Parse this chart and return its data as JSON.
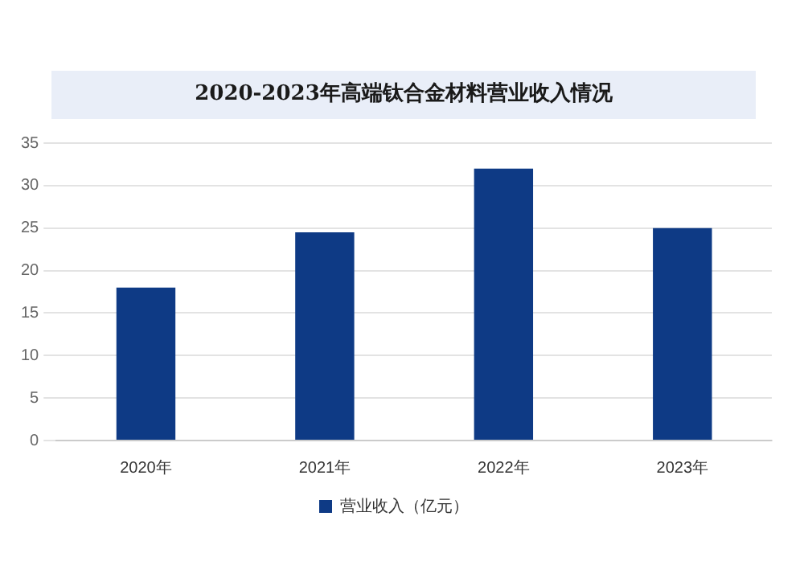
{
  "chart_data": {
    "type": "bar",
    "title": "2020-2023年高端钛合金材料营业收入情况",
    "categories": [
      "2020年",
      "2021年",
      "2022年",
      "2023年"
    ],
    "series": [
      {
        "name": "营业收入（亿元）",
        "color": "#0e3a85",
        "values": [
          18,
          24.5,
          32,
          25
        ]
      }
    ],
    "ylim": [
      0,
      35
    ],
    "yticks": [
      0,
      5,
      10,
      15,
      20,
      25,
      30,
      35
    ],
    "grid": "y",
    "legend": "bottom"
  }
}
